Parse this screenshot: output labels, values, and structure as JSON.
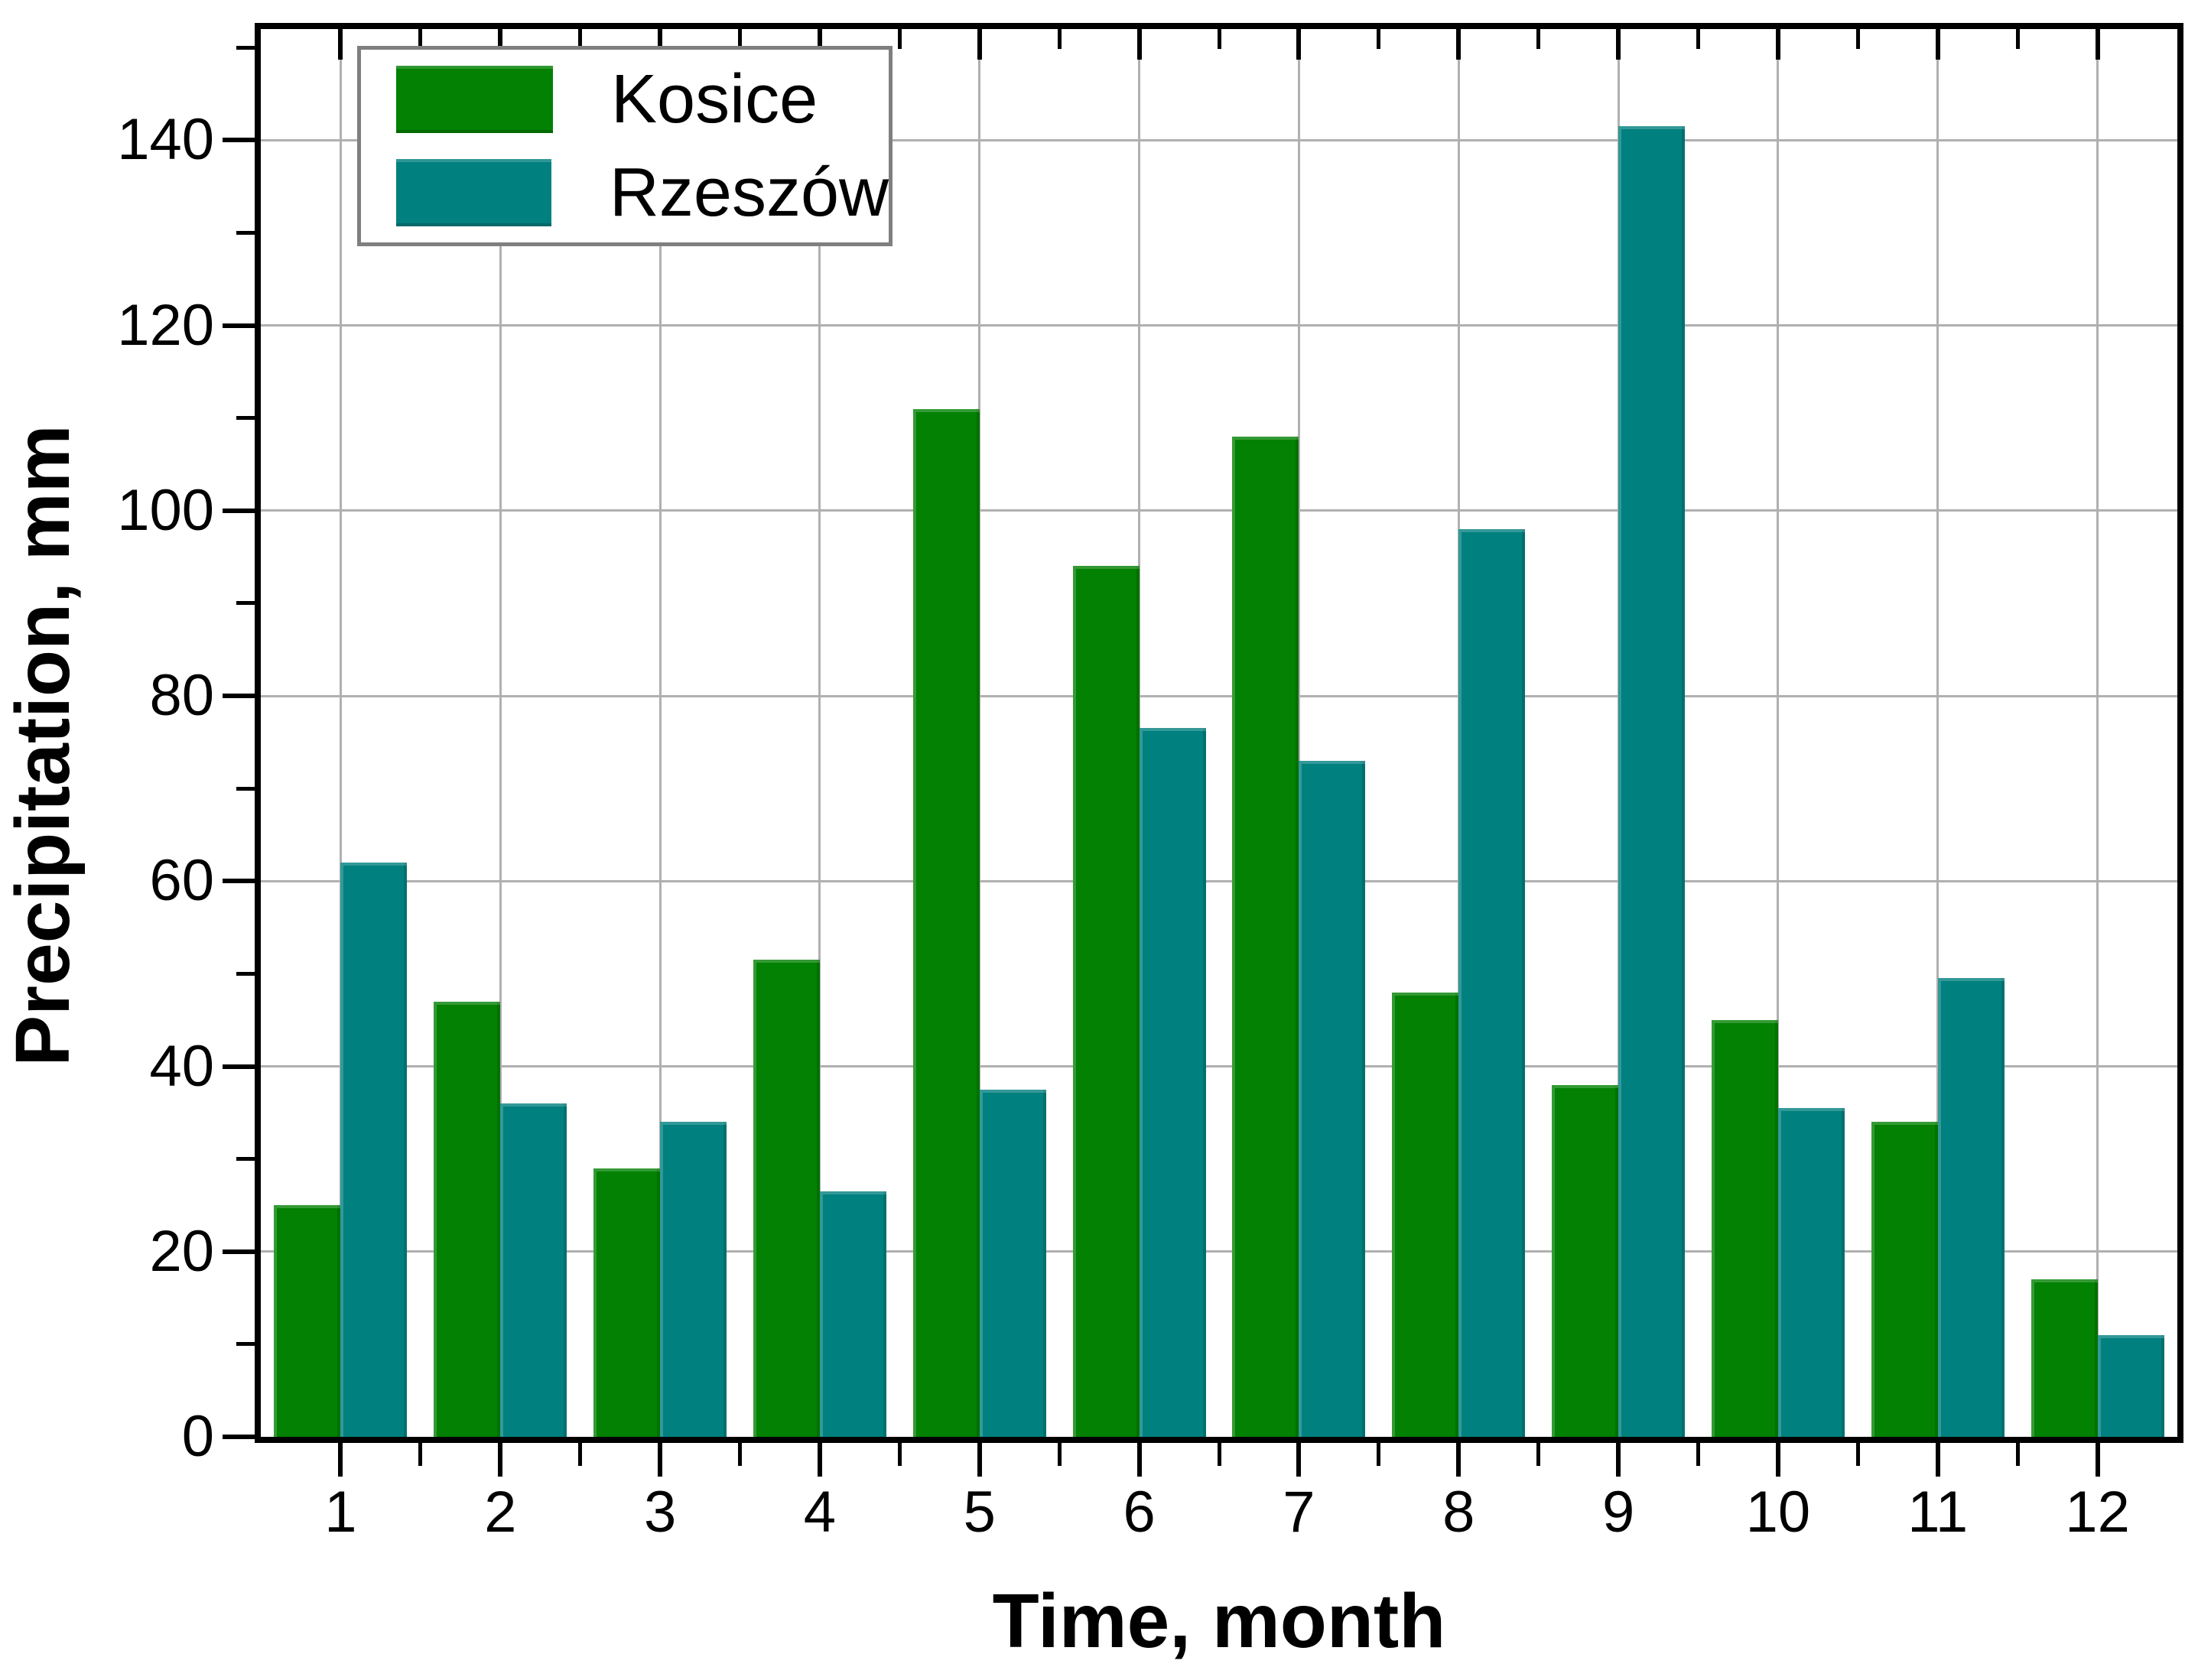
{
  "chart_data": {
    "type": "bar",
    "xlabel": "Time, month",
    "ylabel": "Precipitation, mm",
    "categories": [
      "1",
      "2",
      "3",
      "4",
      "5",
      "6",
      "7",
      "8",
      "9",
      "10",
      "11",
      "12"
    ],
    "series": [
      {
        "name": "Kosice",
        "color": "#028102",
        "values": [
          25,
          47,
          29,
          51.5,
          111,
          94,
          108,
          48,
          38,
          45,
          34,
          17
        ]
      },
      {
        "name": "Rzeszów",
        "color": "#00807F",
        "values": [
          62,
          36,
          34,
          26.5,
          37.5,
          76.5,
          73,
          98,
          141.5,
          35.5,
          49.5,
          11
        ]
      }
    ],
    "ylim": [
      0,
      152
    ],
    "yticks_major": [
      0,
      20,
      40,
      60,
      80,
      100,
      120,
      140
    ],
    "yticks_minor": [
      10,
      30,
      50,
      70,
      90,
      110,
      130,
      150
    ],
    "grid": true,
    "legend_position": "top-left"
  },
  "legend": {
    "items": [
      {
        "label": "Kosice",
        "color": "#028102"
      },
      {
        "label": "Rzeszów",
        "color": "#00807F"
      }
    ],
    "border_color": "#7F7F7F"
  },
  "colors": {
    "grid": "#B0B0B0",
    "axis": "#000000",
    "background": "#FFFFFF"
  }
}
